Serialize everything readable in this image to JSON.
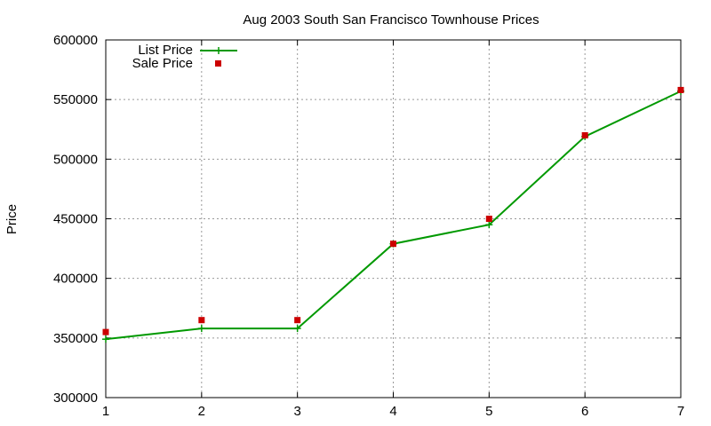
{
  "chart_data": {
    "type": "line",
    "title": "Aug 2003 South San Francisco Townhouse Prices",
    "xlabel": "",
    "ylabel": "Price",
    "x": [
      1,
      2,
      3,
      4,
      5,
      6,
      7
    ],
    "xlim": [
      1,
      7
    ],
    "ylim": [
      300000,
      600000
    ],
    "xticks": [
      "1",
      "2",
      "3",
      "4",
      "5",
      "6",
      "7"
    ],
    "yticks": [
      "300000",
      "350000",
      "400000",
      "450000",
      "500000",
      "550000",
      "600000"
    ],
    "grid": true,
    "legend_position": "top-left",
    "series": [
      {
        "name": "List Price",
        "style": "line-plus",
        "color": "#009900",
        "values": [
          349000,
          358000,
          358000,
          429000,
          445000,
          519000,
          557000
        ]
      },
      {
        "name": "Sale Price",
        "style": "square-markers",
        "color": "#cc0000",
        "values": [
          355000,
          365000,
          365000,
          429000,
          450000,
          520000,
          558000
        ]
      }
    ]
  }
}
